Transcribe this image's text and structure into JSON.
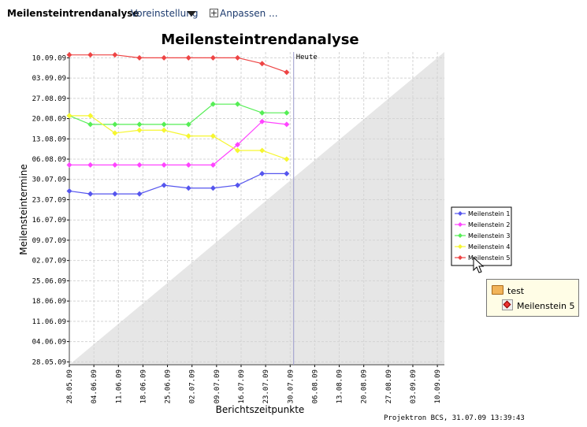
{
  "toolbar": {
    "title": "Meilensteintrendanalyse",
    "preset_label": "Voreinstellung",
    "adjust_label": "Anpassen ..."
  },
  "footer": "Projektron BCS, 31.07.09  13:39:43",
  "tooltip": {
    "folder": "test",
    "item": "Meilenstein 5"
  },
  "chart_data": {
    "type": "line",
    "title": "Meilensteintrendanalyse",
    "xlabel": "Berichtszeitpunkte",
    "ylabel": "Meilensteintermine",
    "x_ticks": [
      "28.05.09",
      "04.06.09",
      "11.06.09",
      "18.06.09",
      "25.06.09",
      "02.07.09",
      "09.07.09",
      "16.07.09",
      "23.07.09",
      "30.07.09",
      "06.08.09",
      "13.08.09",
      "20.08.09",
      "27.08.09",
      "03.09.09",
      "10.09.09"
    ],
    "y_ticks": [
      "28.05.09",
      "04.06.09",
      "11.06.09",
      "18.06.09",
      "25.06.09",
      "02.07.09",
      "09.07.09",
      "16.07.09",
      "23.07.09",
      "30.07.09",
      "06.08.09",
      "13.08.09",
      "20.08.09",
      "27.08.09",
      "03.09.09",
      "10.09.09"
    ],
    "xlim": [
      "28.05.09",
      "12.09.09"
    ],
    "ylim": [
      "27.05.09",
      "12.09.09"
    ],
    "today_label": "Heute",
    "today": "31.07.09",
    "x": [
      "28.05.09",
      "03.06.09",
      "10.06.09",
      "17.06.09",
      "24.06.09",
      "01.07.09",
      "08.07.09",
      "15.07.09",
      "22.07.09",
      "29.07.09"
    ],
    "series": [
      {
        "name": "Meilenstein 1",
        "color": "#5555ee",
        "values": [
          "26.07.09",
          "25.07.09",
          "25.07.09",
          "25.07.09",
          "28.07.09",
          "27.07.09",
          "27.07.09",
          "28.07.09",
          "01.08.09",
          "01.08.09"
        ]
      },
      {
        "name": "Meilenstein 2",
        "color": "#ff44ff",
        "values": [
          "04.08.09",
          "04.08.09",
          "04.08.09",
          "04.08.09",
          "04.08.09",
          "04.08.09",
          "04.08.09",
          "11.08.09",
          "19.08.09",
          "18.08.09"
        ]
      },
      {
        "name": "Meilenstein 3",
        "color": "#55ee55",
        "values": [
          "21.08.09",
          "18.08.09",
          "18.08.09",
          "18.08.09",
          "18.08.09",
          "18.08.09",
          "25.08.09",
          "25.08.09",
          "22.08.09",
          "22.08.09"
        ]
      },
      {
        "name": "Meilenstein 4",
        "color": "#f6f630",
        "values": [
          "21.08.09",
          "21.08.09",
          "15.08.09",
          "16.08.09",
          "16.08.09",
          "14.08.09",
          "14.08.09",
          "09.08.09",
          "09.08.09",
          "06.08.09"
        ]
      },
      {
        "name": "Meilenstein 5",
        "color": "#ee4444",
        "values": [
          "11.09.09",
          "11.09.09",
          "11.09.09",
          "10.09.09",
          "10.09.09",
          "10.09.09",
          "10.09.09",
          "10.09.09",
          "08.09.09",
          "05.09.09"
        ]
      }
    ],
    "grid": true,
    "legend_position": "right"
  }
}
